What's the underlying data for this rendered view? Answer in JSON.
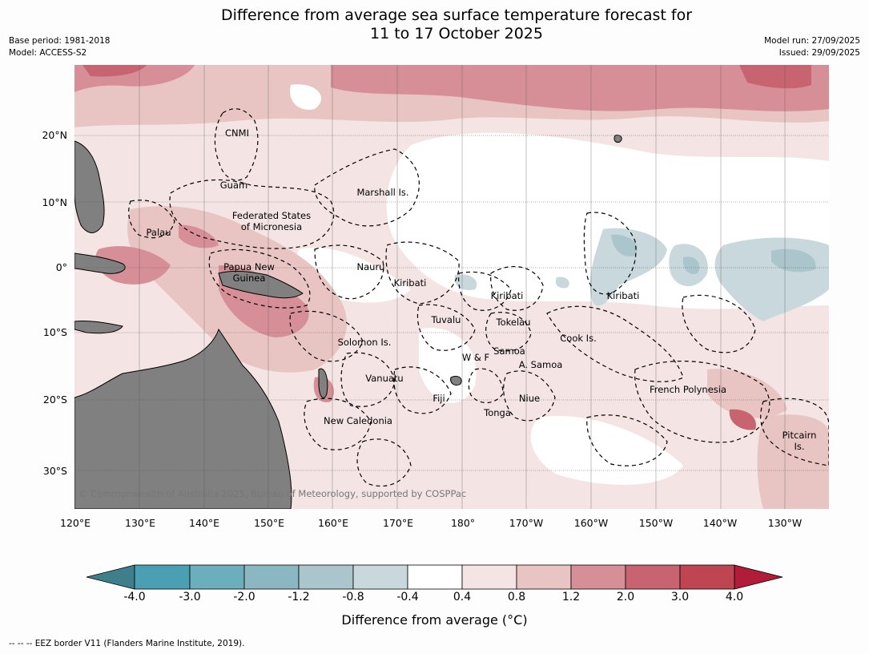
{
  "title": {
    "line1": "Difference from average sea surface temperature forecast for",
    "line2": "11 to 17 October 2025"
  },
  "meta": {
    "base_period": "Base period: 1981-2018",
    "model": "Model: ACCESS-S2",
    "model_run": "Model run: 27/09/2025",
    "issued": "Issued: 29/09/2025"
  },
  "map": {
    "lat_labels": [
      "20°N",
      "10°N",
      "0°",
      "10°S",
      "20°S",
      "30°S"
    ],
    "lon_labels": [
      "120°E",
      "130°E",
      "140°E",
      "150°E",
      "160°E",
      "170°E",
      "180°",
      "170°W",
      "160°W",
      "150°W",
      "140°W",
      "130°W"
    ],
    "places": {
      "cnmi": "CNMI",
      "guam": "Guam",
      "marshall": "Marshall Is.",
      "fsm_1": "Federated States",
      "fsm_2": "of Micronesia",
      "palau": "Palau",
      "png_1": "Papua New",
      "png_2": "Guinea",
      "nauru": "Nauru",
      "kiribati_w": "Kiribati",
      "kiribati_c": "Kiribati",
      "kiribati_e": "Kiribati",
      "tuvalu": "Tuvalu",
      "tokelau": "Tokelau",
      "cook": "Cook Is.",
      "solomon": "Solomon Is.",
      "wallis": "W & F",
      "samoa": "Samoa",
      "am_samoa": "A. Samoa",
      "vanuatu": "Vanuatu",
      "fiji": "Fiji",
      "niue": "Niue",
      "tonga": "Tonga",
      "new_caledonia": "New Caledonia",
      "fr_polynesia": "French Polynesia",
      "pitcairn_1": "Pitcairn",
      "pitcairn_2": "Is."
    },
    "credit": "© Commonwealth of Australia 2025, Bureau of Meteorology, supported by COSPPac"
  },
  "colorbar": {
    "label": "Difference from average (°C)",
    "ticks": [
      "-4.0",
      "-3.0",
      "-2.0",
      "-1.2",
      "-0.8",
      "-0.4",
      "0.4",
      "0.8",
      "1.2",
      "2.0",
      "3.0",
      "4.0"
    ],
    "colors": [
      "#3f7f8b",
      "#4aa0b2",
      "#6caebb",
      "#8bb7c2",
      "#aac6cc",
      "#c9d8dc",
      "#ffffff",
      "#f4e5e4",
      "#e8c5c3",
      "#d78f97",
      "#c8646f",
      "#bf4553",
      "#b11c39"
    ]
  },
  "legend_note": "--  --  -- EEZ border V11 (Flanders Marine Institute, 2019)."
}
